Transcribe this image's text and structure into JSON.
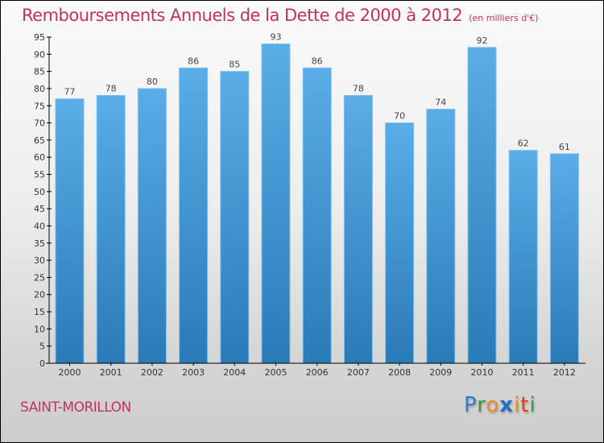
{
  "title": "Remboursements Annuels de la Dette de 2000 à 2012",
  "unit": "(en milliers d'€)",
  "commune": "SAINT-MORILLON",
  "logo": {
    "letters": [
      {
        "ch": "P",
        "color": "#2a7fd0"
      },
      {
        "ch": "r",
        "color": "#3a9a3a"
      },
      {
        "ch": "o",
        "color": "#f08a1c"
      },
      {
        "ch": "x",
        "color": "#1f6fc5"
      },
      {
        "ch": "i",
        "color": "#f08a1c"
      },
      {
        "ch": "t",
        "color": "#e0401c"
      },
      {
        "ch": "i",
        "color": "#3a9a3a"
      }
    ]
  },
  "colors": {
    "title": "#c0325e",
    "bar_top": "#5aade6",
    "bar_bottom": "#2a7ab8",
    "axis": "#000000"
  },
  "chart_data": {
    "type": "bar",
    "title": "Remboursements Annuels de la Dette de 2000 à 2012",
    "subtitle": "(en milliers d'€)",
    "xlabel": "",
    "ylabel": "",
    "categories": [
      "2000",
      "2001",
      "2002",
      "2003",
      "2004",
      "2005",
      "2006",
      "2007",
      "2008",
      "2009",
      "2010",
      "2011",
      "2012"
    ],
    "values": [
      77,
      78,
      80,
      86,
      85,
      93,
      86,
      78,
      70,
      74,
      92,
      62,
      61
    ],
    "ylim": [
      0,
      95
    ],
    "yticks": [
      0,
      5,
      10,
      15,
      20,
      25,
      30,
      35,
      40,
      45,
      50,
      55,
      60,
      65,
      70,
      75,
      80,
      85,
      90,
      95
    ],
    "grid": false,
    "data_labels": true
  }
}
